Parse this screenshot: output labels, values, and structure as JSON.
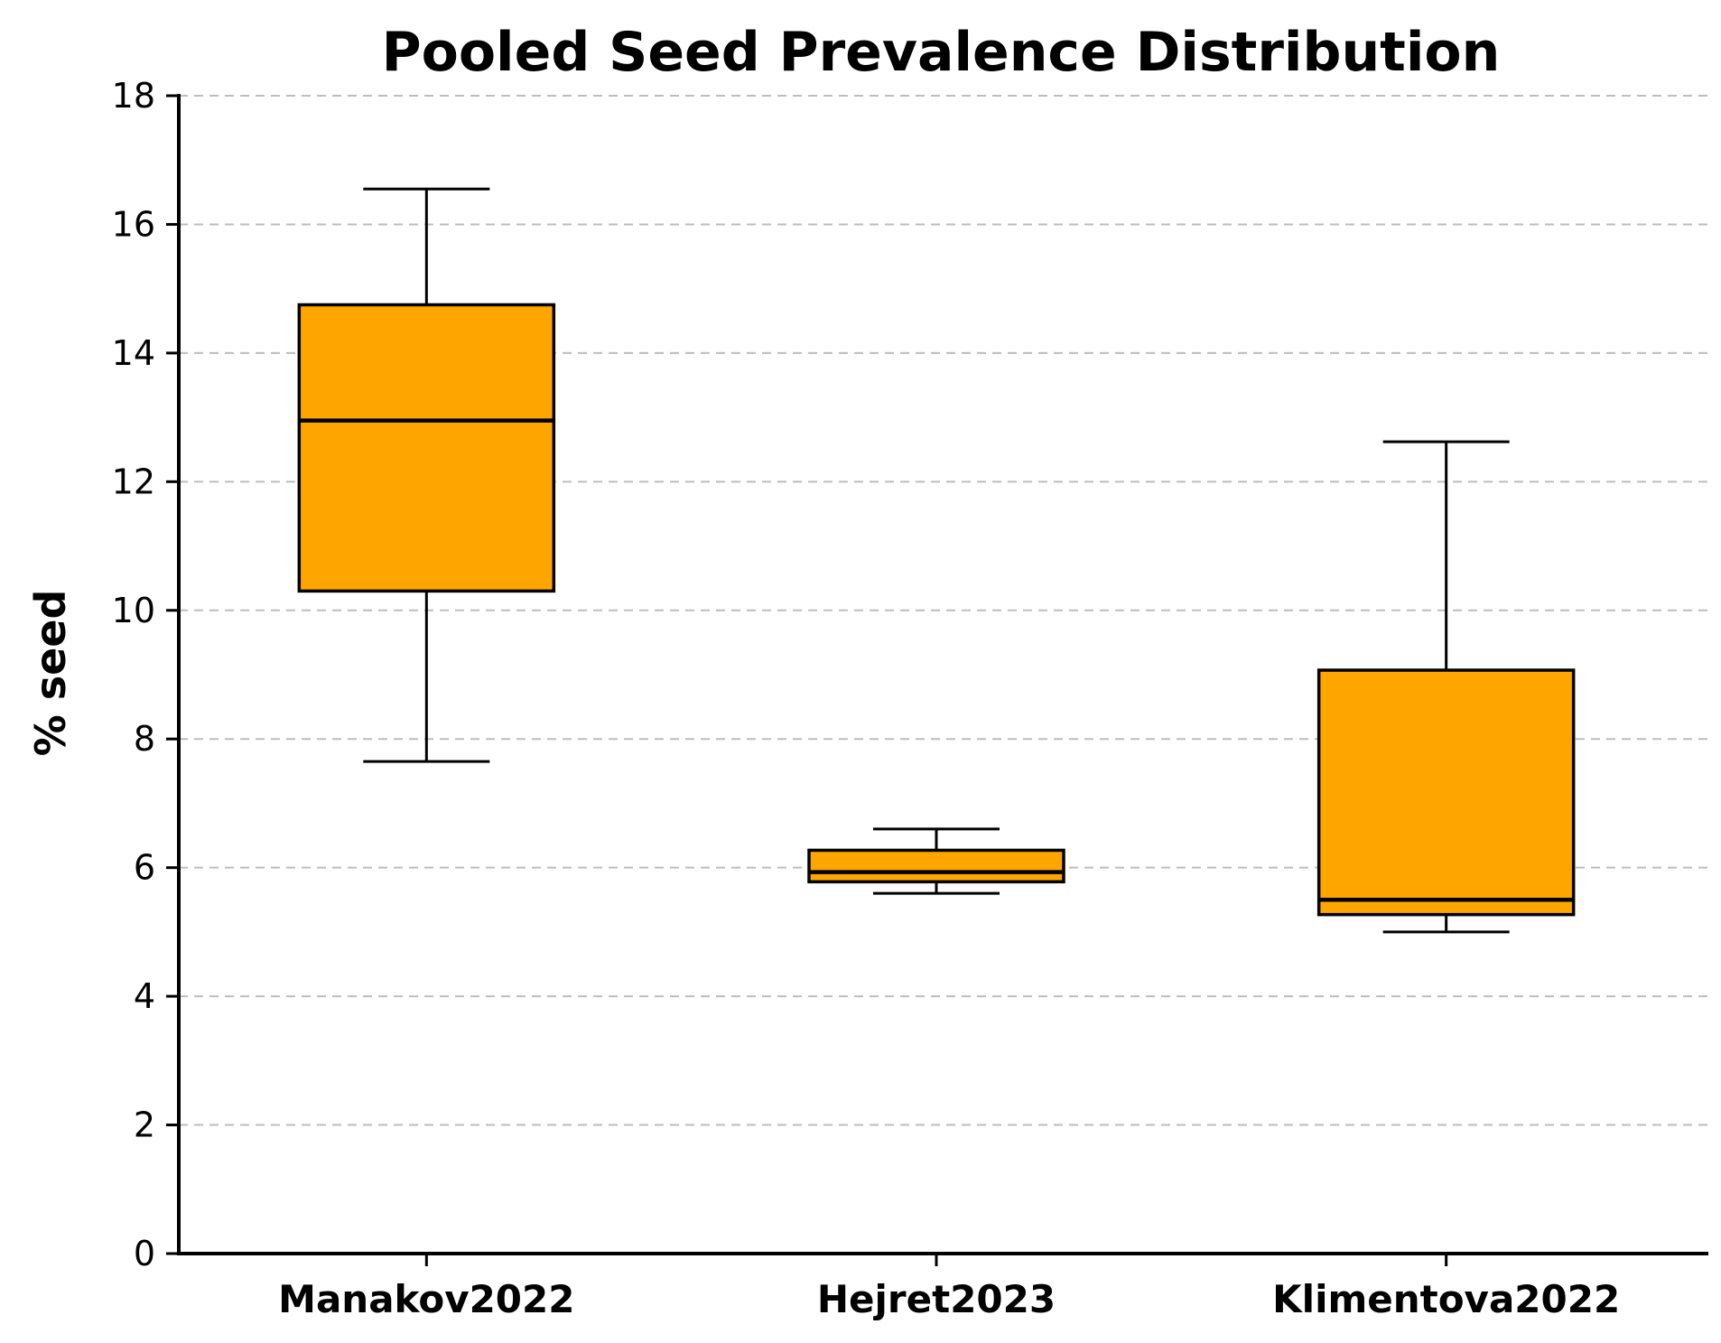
{
  "chart_data": {
    "type": "box",
    "title": "Pooled Seed Prevalence Distribution",
    "xlabel": "",
    "ylabel": "% seed",
    "ylim": [
      0,
      18
    ],
    "yticks": [
      0,
      2,
      4,
      6,
      8,
      10,
      12,
      14,
      16,
      18
    ],
    "grid": "y-dashed",
    "legend": "none",
    "box_color": "#FFA500",
    "categories": [
      "Manakov2022",
      "Hejret2023",
      "Klimentova2022"
    ],
    "boxes": [
      {
        "category": "Manakov2022",
        "whisker_low": 7.65,
        "q1": 10.3,
        "median": 12.95,
        "q3": 14.75,
        "whisker_high": 16.55
      },
      {
        "category": "Hejret2023",
        "whisker_low": 5.6,
        "q1": 5.78,
        "median": 5.93,
        "q3": 6.27,
        "whisker_high": 6.6
      },
      {
        "category": "Klimentova2022",
        "whisker_low": 5.0,
        "q1": 5.27,
        "median": 5.5,
        "q3": 9.07,
        "whisker_high": 12.62
      }
    ]
  }
}
